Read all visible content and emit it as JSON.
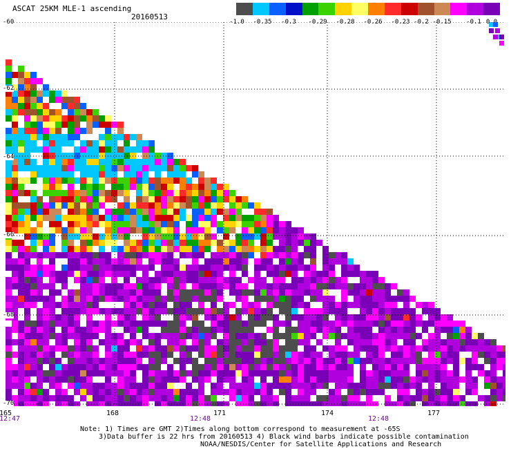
{
  "header": {
    "title": "ASCAT 25KM MLE-1 ascending",
    "date": "20160513"
  },
  "colorbar": {
    "colors": [
      "#4d4d4d",
      "#00c8ff",
      "#0a60ff",
      "#0010c8",
      "#00a000",
      "#3cd200",
      "#ffd200",
      "#ffff64",
      "#ff8000",
      "#ff2a2a",
      "#cc0000",
      "#a0522d",
      "#cc8855",
      "#ff00ff",
      "#b000dd",
      "#7a00b8"
    ],
    "labels": [
      "-1.0",
      "-0.35",
      "-0.3",
      "-0.29",
      "-0.28",
      "-0.26",
      "-0.23",
      "-0.2",
      "-0.15",
      "-0.1",
      "0.0"
    ]
  },
  "map": {
    "lat_labels": [
      "-60",
      "-62",
      "-64",
      "-66",
      "-68",
      "-70"
    ],
    "lon_labels": [
      "165",
      "168",
      "171",
      "174",
      "177"
    ],
    "time_labels": [
      "12:47",
      "12:48",
      "12:48"
    ],
    "lat_range": [
      -70,
      -60
    ],
    "lon_range": [
      165,
      178.5
    ]
  },
  "notes": {
    "line1": "Note: 1) Times are GMT 2)Times along bottom correspond to measurement at -65S",
    "line2": "3)Data buffer is 22 hrs from 20160513 4) Black wind barbs indicate possible contamination",
    "line3": "NOAA/NESDIS/Center for Satellite Applications and Research"
  }
}
